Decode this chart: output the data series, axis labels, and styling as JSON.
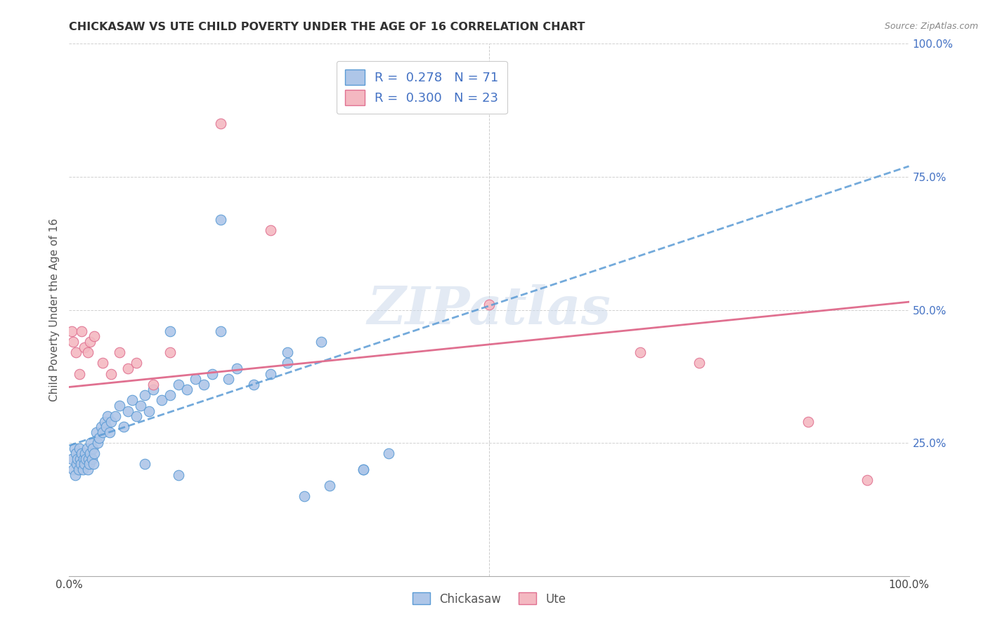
{
  "title": "CHICKASAW VS UTE CHILD POVERTY UNDER THE AGE OF 16 CORRELATION CHART",
  "source": "Source: ZipAtlas.com",
  "ylabel": "Child Poverty Under the Age of 16",
  "xlim": [
    0.0,
    1.0
  ],
  "ylim": [
    0.0,
    1.0
  ],
  "chickasaw_R": 0.278,
  "chickasaw_N": 71,
  "ute_R": 0.3,
  "ute_N": 23,
  "chickasaw_color": "#aec6e8",
  "chickasaw_edge_color": "#5b9bd5",
  "ute_color": "#f4b8c1",
  "ute_edge_color": "#e07090",
  "trend_chickasaw_color": "#5b9bd5",
  "trend_ute_color": "#e07090",
  "watermark": "ZIPatlas",
  "chickasaw_x": [
    0.003,
    0.005,
    0.006,
    0.007,
    0.008,
    0.009,
    0.01,
    0.011,
    0.012,
    0.013,
    0.014,
    0.015,
    0.016,
    0.017,
    0.018,
    0.019,
    0.02,
    0.021,
    0.022,
    0.023,
    0.024,
    0.025,
    0.026,
    0.027,
    0.028,
    0.029,
    0.03,
    0.032,
    0.034,
    0.036,
    0.038,
    0.04,
    0.042,
    0.044,
    0.046,
    0.048,
    0.05,
    0.055,
    0.06,
    0.065,
    0.07,
    0.075,
    0.08,
    0.085,
    0.09,
    0.095,
    0.1,
    0.11,
    0.12,
    0.13,
    0.14,
    0.15,
    0.16,
    0.17,
    0.18,
    0.19,
    0.2,
    0.22,
    0.24,
    0.26,
    0.18,
    0.35,
    0.38,
    0.12,
    0.26,
    0.3,
    0.28,
    0.31,
    0.35,
    0.09,
    0.13
  ],
  "chickasaw_y": [
    0.22,
    0.2,
    0.24,
    0.19,
    0.23,
    0.21,
    0.22,
    0.2,
    0.24,
    0.22,
    0.21,
    0.23,
    0.2,
    0.22,
    0.21,
    0.23,
    0.22,
    0.24,
    0.2,
    0.22,
    0.21,
    0.23,
    0.25,
    0.22,
    0.24,
    0.21,
    0.23,
    0.27,
    0.25,
    0.26,
    0.28,
    0.27,
    0.29,
    0.28,
    0.3,
    0.27,
    0.29,
    0.3,
    0.32,
    0.28,
    0.31,
    0.33,
    0.3,
    0.32,
    0.34,
    0.31,
    0.35,
    0.33,
    0.34,
    0.36,
    0.35,
    0.37,
    0.36,
    0.38,
    0.67,
    0.37,
    0.39,
    0.36,
    0.38,
    0.4,
    0.46,
    0.2,
    0.23,
    0.46,
    0.42,
    0.44,
    0.15,
    0.17,
    0.2,
    0.21,
    0.19
  ],
  "ute_x": [
    0.003,
    0.005,
    0.008,
    0.012,
    0.015,
    0.018,
    0.022,
    0.025,
    0.03,
    0.04,
    0.05,
    0.06,
    0.07,
    0.08,
    0.1,
    0.12,
    0.18,
    0.24,
    0.5,
    0.68,
    0.75,
    0.88,
    0.95
  ],
  "ute_y": [
    0.46,
    0.44,
    0.42,
    0.38,
    0.46,
    0.43,
    0.42,
    0.44,
    0.45,
    0.4,
    0.38,
    0.42,
    0.39,
    0.4,
    0.36,
    0.42,
    0.85,
    0.65,
    0.51,
    0.42,
    0.4,
    0.29,
    0.18
  ],
  "trend_chick_x0": 0.0,
  "trend_chick_y0": 0.245,
  "trend_chick_x1": 1.0,
  "trend_chick_y1": 0.77,
  "trend_ute_x0": 0.0,
  "trend_ute_y0": 0.355,
  "trend_ute_x1": 1.0,
  "trend_ute_y1": 0.515
}
